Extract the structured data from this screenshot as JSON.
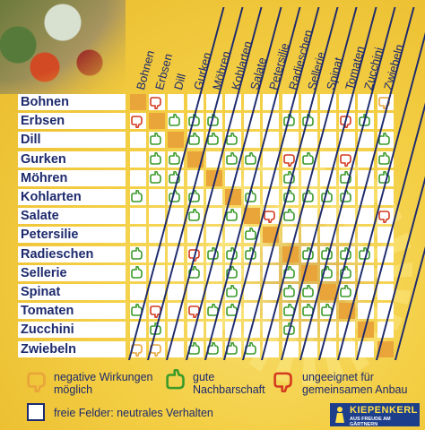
{
  "crops": [
    "Bohnen",
    "Erbsen",
    "Dill",
    "Gurken",
    "Möhren",
    "Kohlarten",
    "Salate",
    "Petersilie",
    "Radieschen",
    "Sellerie",
    "Spinat",
    "Tomaten",
    "Zucchini",
    "Zwiebeln"
  ],
  "colors": {
    "text": "#1d2a6d",
    "cell": "#ffffff",
    "diagonal": "#e9a43a",
    "negative": "#e9a43a",
    "good": "#3a9a2a",
    "unsuitable": "#d23a1f"
  },
  "icon_names": {
    "N": "thumbs-down-orange-icon",
    "G": "thumbs-up-green-icon",
    "U": "thumbs-down-red-icon"
  },
  "matrix": [
    [
      "D",
      "U",
      "",
      "",
      "",
      "",
      "",
      "",
      "",
      "",
      "",
      "",
      "",
      "N"
    ],
    [
      "U",
      "D",
      "G",
      "G",
      "G",
      "",
      "",
      "",
      "G",
      "G",
      "",
      "U",
      "G",
      ""
    ],
    [
      "",
      "G",
      "D",
      "G",
      "G",
      "G",
      "",
      "",
      "",
      "",
      "",
      "",
      "",
      "G"
    ],
    [
      "",
      "G",
      "G",
      "D",
      "",
      "G",
      "G",
      "",
      "U",
      "G",
      "",
      "U",
      "",
      "G"
    ],
    [
      "",
      "G",
      "G",
      "",
      "D",
      "",
      "",
      "",
      "G",
      "",
      "",
      "G",
      "",
      "G"
    ],
    [
      "G",
      "",
      "G",
      "G",
      "",
      "D",
      "G",
      "",
      "G",
      "G",
      "G",
      "G",
      "",
      ""
    ],
    [
      "",
      "",
      "",
      "G",
      "",
      "G",
      "D",
      "U",
      "G",
      "",
      "",
      "",
      "",
      "U"
    ],
    [
      "",
      "",
      "",
      "",
      "",
      "",
      "G",
      "D",
      "",
      "",
      "",
      "",
      "",
      ""
    ],
    [
      "G",
      "",
      "",
      "U",
      "G",
      "G",
      "G",
      "",
      "D",
      "G",
      "G",
      "G",
      "G",
      ""
    ],
    [
      "G",
      "",
      "",
      "G",
      "",
      "G",
      "",
      "",
      "G",
      "D",
      "G",
      "G",
      "",
      ""
    ],
    [
      "",
      "",
      "",
      "",
      "",
      "G",
      "",
      "",
      "G",
      "G",
      "D",
      "G",
      "",
      ""
    ],
    [
      "G",
      "U",
      "",
      "U",
      "G",
      "G",
      "",
      "",
      "G",
      "G",
      "G",
      "D",
      "",
      ""
    ],
    [
      "",
      "G",
      "",
      "",
      "",
      "",
      "",
      "",
      "G",
      "",
      "",
      "",
      "D",
      ""
    ],
    [
      "N",
      "N",
      "",
      "G",
      "G",
      "G",
      "G",
      "",
      "",
      "",
      "",
      "",
      "",
      "D"
    ]
  ],
  "legend": {
    "negative": "negative Wirkungen möglich",
    "good": "gute Nachbarschaft",
    "unsuitable": "ungeeignet für gemeinsamen Anbau",
    "empty": "freie Felder: neutrales Verhalten"
  },
  "logo": {
    "brand": "KIEPENKERL",
    "slogan": "AUS FREUDE AM GÄRTNERN"
  }
}
